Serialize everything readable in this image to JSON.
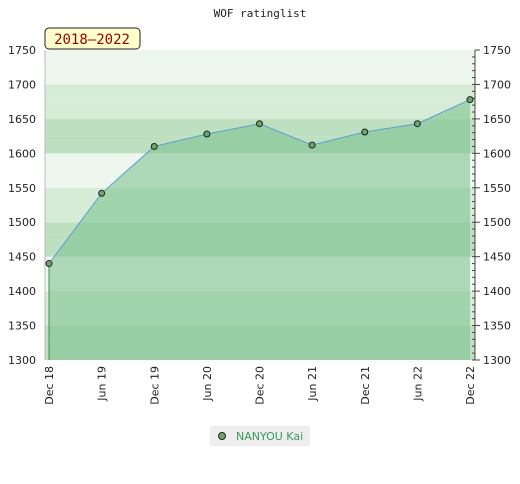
{
  "chart_data": {
    "type": "area",
    "title": "WOF ratinglist",
    "badge": "2018–2022",
    "xlabel": "",
    "ylabel": "",
    "categories": [
      "Dec 18",
      "Jun 19",
      "Dec 19",
      "Jun 20",
      "Dec 20",
      "Jun 21",
      "Dec 21",
      "Jun 22",
      "Dec 22"
    ],
    "series": [
      {
        "name": "NANYOU Kai",
        "values": [
          1440,
          1542,
          1610,
          1628,
          1643,
          1612,
          1631,
          1643,
          1678
        ]
      }
    ],
    "ylim": [
      1300,
      1750
    ],
    "yticks": [
      1300,
      1350,
      1400,
      1450,
      1500,
      1550,
      1600,
      1650,
      1700,
      1750
    ],
    "grid": true,
    "legend_position": "bottom",
    "colors": {
      "band_light": "#eef7ee",
      "band_mid": "#d6ecd6",
      "band_dark": "#bfe0c0",
      "area_fill": "#77c08d",
      "line": "#5a9fd4",
      "marker": "#6aa86a",
      "badge_bg": "#ffffcc",
      "badge_text": "#990000"
    }
  }
}
